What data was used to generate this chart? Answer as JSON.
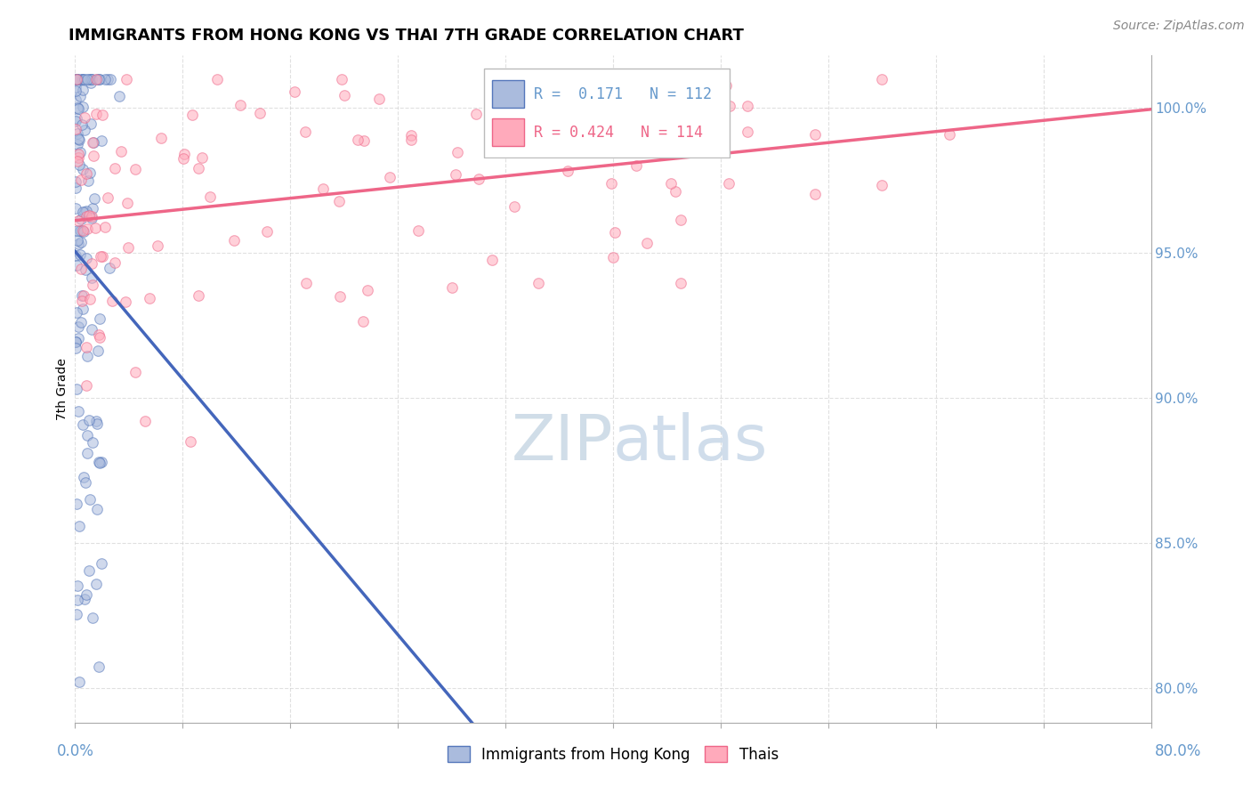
{
  "title": "IMMIGRANTS FROM HONG KONG VS THAI 7TH GRADE CORRELATION CHART",
  "source_text": "Source: ZipAtlas.com",
  "ylabel": "7th Grade",
  "yticks": [
    0.8,
    0.85,
    0.9,
    0.95,
    1.0
  ],
  "ytick_labels": [
    "80.0%",
    "85.0%",
    "90.0%",
    "95.0%",
    "100.0%"
  ],
  "xlim": [
    0.0,
    0.8
  ],
  "ylim": [
    0.788,
    1.018
  ],
  "R_hk": 0.171,
  "N_hk": 112,
  "R_thai": 0.424,
  "N_thai": 114,
  "blue_fill": "#AABBDD",
  "blue_edge": "#5577BB",
  "pink_fill": "#FFAABB",
  "pink_edge": "#EE6688",
  "blue_line": "#4466BB",
  "pink_line": "#EE6688",
  "wm_color": "#D0DDE8",
  "grid_color": "#CCCCCC",
  "tick_color": "#6699CC",
  "title_size": 13,
  "source_size": 10,
  "ylabel_size": 10,
  "ytick_size": 11
}
